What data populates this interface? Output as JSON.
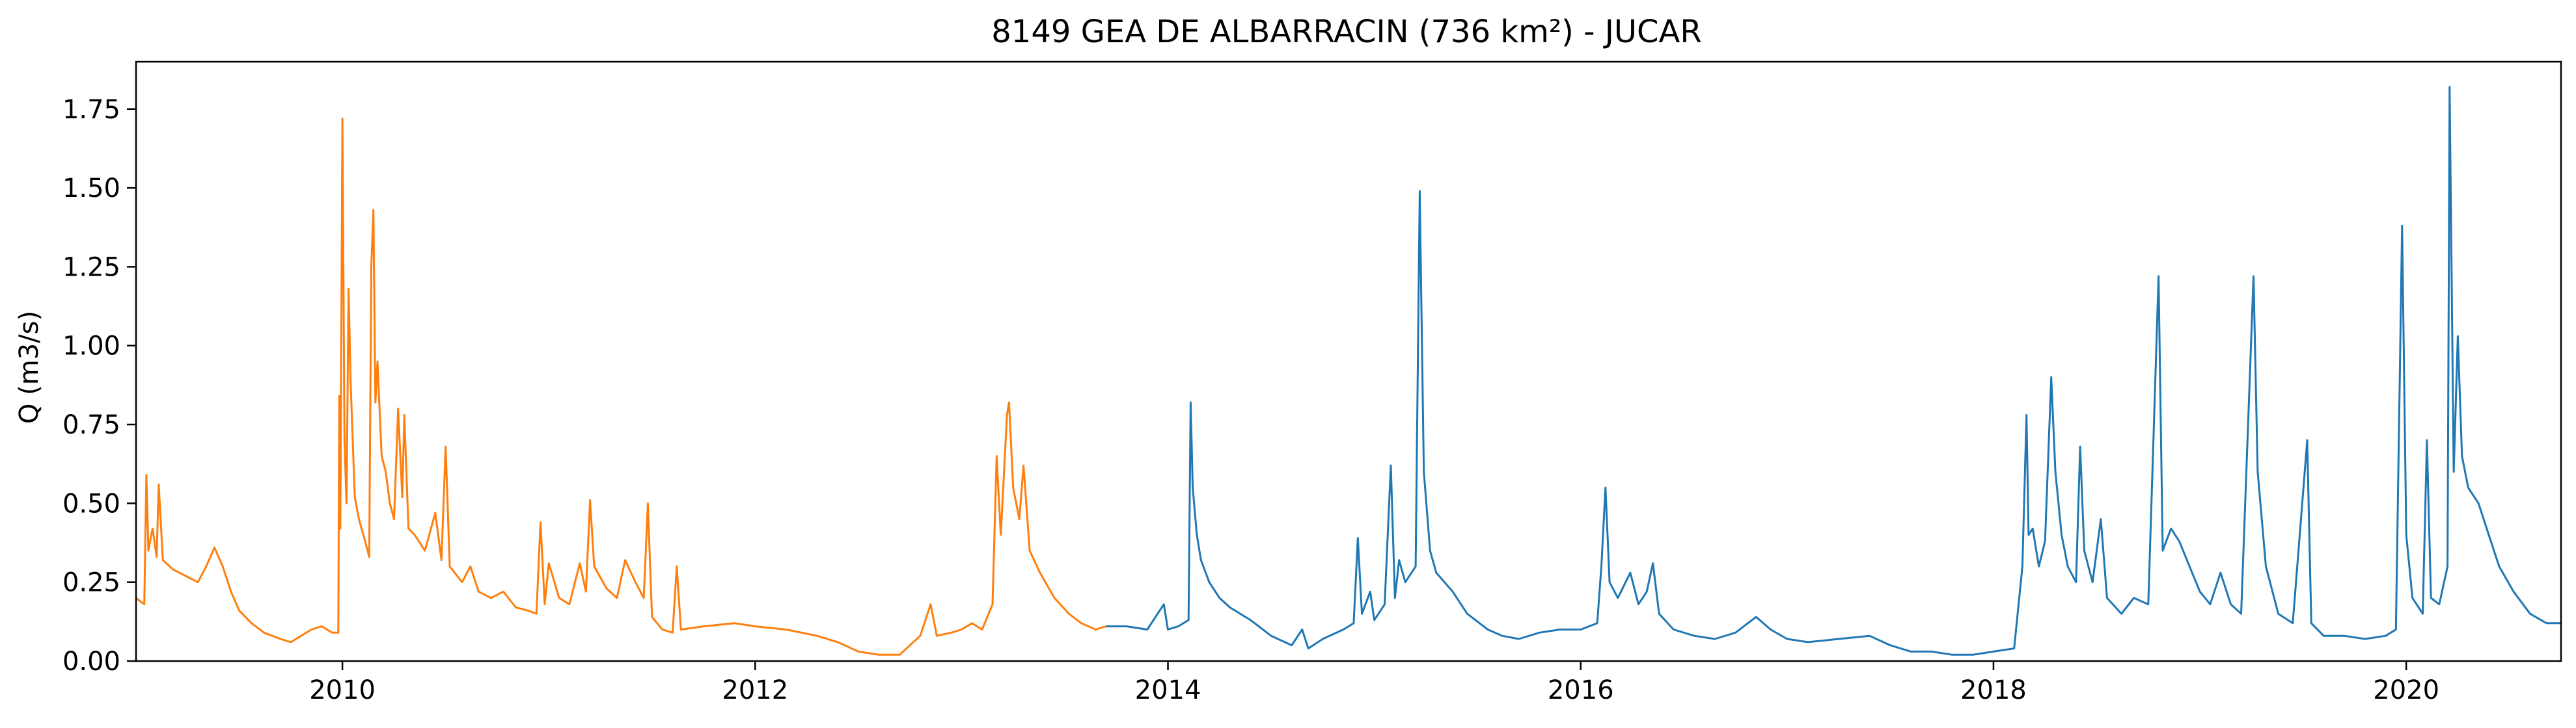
{
  "chart_data": {
    "type": "line",
    "title": "8149 GEA DE ALBARRACIN (736 km²) - JUCAR",
    "xlabel": "",
    "ylabel": "Q (m3/s)",
    "xlim": [
      2009.0,
      2020.75
    ],
    "ylim": [
      0.0,
      1.9
    ],
    "grid": false,
    "x_ticks": [
      2010,
      2012,
      2014,
      2016,
      2018,
      2020
    ],
    "x_tick_labels": [
      "2010",
      "2012",
      "2014",
      "2016",
      "2018",
      "2020"
    ],
    "y_ticks": [
      0.0,
      0.25,
      0.5,
      0.75,
      1.0,
      1.25,
      1.5,
      1.75
    ],
    "y_tick_labels": [
      "0.00",
      "0.25",
      "0.50",
      "0.75",
      "1.00",
      "1.25",
      "1.50",
      "1.75"
    ],
    "series": [
      {
        "color": "#ff7f0e",
        "points": [
          [
            2009.0,
            0.2
          ],
          [
            2009.04,
            0.18
          ],
          [
            2009.05,
            0.59
          ],
          [
            2009.06,
            0.35
          ],
          [
            2009.08,
            0.42
          ],
          [
            2009.1,
            0.33
          ],
          [
            2009.11,
            0.56
          ],
          [
            2009.13,
            0.32
          ],
          [
            2009.18,
            0.29
          ],
          [
            2009.24,
            0.27
          ],
          [
            2009.3,
            0.25
          ],
          [
            2009.34,
            0.3
          ],
          [
            2009.38,
            0.36
          ],
          [
            2009.42,
            0.3
          ],
          [
            2009.46,
            0.22
          ],
          [
            2009.5,
            0.16
          ],
          [
            2009.56,
            0.12
          ],
          [
            2009.62,
            0.09
          ],
          [
            2009.7,
            0.07
          ],
          [
            2009.75,
            0.06
          ],
          [
            2009.8,
            0.08
          ],
          [
            2009.85,
            0.1
          ],
          [
            2009.9,
            0.11
          ],
          [
            2009.95,
            0.09
          ],
          [
            2009.98,
            0.09
          ],
          [
            2009.985,
            0.84
          ],
          [
            2009.99,
            0.42
          ],
          [
            2010.0,
            1.72
          ],
          [
            2010.01,
            0.7
          ],
          [
            2010.02,
            0.5
          ],
          [
            2010.03,
            1.18
          ],
          [
            2010.04,
            0.88
          ],
          [
            2010.06,
            0.52
          ],
          [
            2010.08,
            0.45
          ],
          [
            2010.11,
            0.38
          ],
          [
            2010.13,
            0.33
          ],
          [
            2010.14,
            1.25
          ],
          [
            2010.15,
            1.43
          ],
          [
            2010.16,
            0.82
          ],
          [
            2010.17,
            0.95
          ],
          [
            2010.19,
            0.65
          ],
          [
            2010.21,
            0.6
          ],
          [
            2010.23,
            0.5
          ],
          [
            2010.25,
            0.45
          ],
          [
            2010.27,
            0.8
          ],
          [
            2010.29,
            0.52
          ],
          [
            2010.3,
            0.78
          ],
          [
            2010.32,
            0.42
          ],
          [
            2010.35,
            0.4
          ],
          [
            2010.4,
            0.35
          ],
          [
            2010.45,
            0.47
          ],
          [
            2010.48,
            0.32
          ],
          [
            2010.5,
            0.68
          ],
          [
            2010.52,
            0.3
          ],
          [
            2010.58,
            0.25
          ],
          [
            2010.62,
            0.3
          ],
          [
            2010.66,
            0.22
          ],
          [
            2010.72,
            0.2
          ],
          [
            2010.78,
            0.22
          ],
          [
            2010.84,
            0.17
          ],
          [
            2010.9,
            0.16
          ],
          [
            2010.94,
            0.15
          ],
          [
            2010.96,
            0.44
          ],
          [
            2010.98,
            0.18
          ],
          [
            2011.0,
            0.31
          ],
          [
            2011.05,
            0.2
          ],
          [
            2011.1,
            0.18
          ],
          [
            2011.15,
            0.31
          ],
          [
            2011.18,
            0.22
          ],
          [
            2011.2,
            0.51
          ],
          [
            2011.22,
            0.3
          ],
          [
            2011.28,
            0.23
          ],
          [
            2011.33,
            0.2
          ],
          [
            2011.37,
            0.32
          ],
          [
            2011.42,
            0.25
          ],
          [
            2011.46,
            0.2
          ],
          [
            2011.48,
            0.5
          ],
          [
            2011.5,
            0.14
          ],
          [
            2011.55,
            0.1
          ],
          [
            2011.6,
            0.09
          ],
          [
            2011.62,
            0.3
          ],
          [
            2011.64,
            0.1
          ],
          [
            2011.75,
            0.11
          ],
          [
            2011.9,
            0.12
          ],
          [
            2012.0,
            0.11
          ],
          [
            2012.15,
            0.1
          ],
          [
            2012.3,
            0.08
          ],
          [
            2012.4,
            0.06
          ],
          [
            2012.5,
            0.03
          ],
          [
            2012.6,
            0.02
          ],
          [
            2012.7,
            0.02
          ],
          [
            2012.75,
            0.05
          ],
          [
            2012.8,
            0.08
          ],
          [
            2012.85,
            0.18
          ],
          [
            2012.88,
            0.08
          ],
          [
            2012.95,
            0.09
          ],
          [
            2013.0,
            0.1
          ],
          [
            2013.05,
            0.12
          ],
          [
            2013.1,
            0.1
          ],
          [
            2013.15,
            0.18
          ],
          [
            2013.17,
            0.65
          ],
          [
            2013.19,
            0.4
          ],
          [
            2013.22,
            0.78
          ],
          [
            2013.23,
            0.82
          ],
          [
            2013.25,
            0.55
          ],
          [
            2013.28,
            0.45
          ],
          [
            2013.3,
            0.62
          ],
          [
            2013.33,
            0.35
          ],
          [
            2013.38,
            0.28
          ],
          [
            2013.45,
            0.2
          ],
          [
            2013.52,
            0.15
          ],
          [
            2013.58,
            0.12
          ],
          [
            2013.65,
            0.1
          ],
          [
            2013.7,
            0.11
          ]
        ]
      },
      {
        "color": "#1f77b4",
        "points": [
          [
            2013.7,
            0.11
          ],
          [
            2013.8,
            0.11
          ],
          [
            2013.9,
            0.1
          ],
          [
            2013.98,
            0.18
          ],
          [
            2014.0,
            0.1
          ],
          [
            2014.05,
            0.11
          ],
          [
            2014.1,
            0.13
          ],
          [
            2014.11,
            0.82
          ],
          [
            2014.12,
            0.55
          ],
          [
            2014.14,
            0.4
          ],
          [
            2014.16,
            0.32
          ],
          [
            2014.2,
            0.25
          ],
          [
            2014.25,
            0.2
          ],
          [
            2014.3,
            0.17
          ],
          [
            2014.4,
            0.13
          ],
          [
            2014.5,
            0.08
          ],
          [
            2014.6,
            0.05
          ],
          [
            2014.65,
            0.1
          ],
          [
            2014.68,
            0.04
          ],
          [
            2014.75,
            0.07
          ],
          [
            2014.85,
            0.1
          ],
          [
            2014.9,
            0.12
          ],
          [
            2014.92,
            0.39
          ],
          [
            2014.94,
            0.15
          ],
          [
            2014.98,
            0.22
          ],
          [
            2015.0,
            0.13
          ],
          [
            2015.05,
            0.18
          ],
          [
            2015.08,
            0.62
          ],
          [
            2015.1,
            0.2
          ],
          [
            2015.12,
            0.32
          ],
          [
            2015.15,
            0.25
          ],
          [
            2015.2,
            0.3
          ],
          [
            2015.22,
            1.49
          ],
          [
            2015.24,
            0.6
          ],
          [
            2015.27,
            0.35
          ],
          [
            2015.3,
            0.28
          ],
          [
            2015.38,
            0.22
          ],
          [
            2015.45,
            0.15
          ],
          [
            2015.55,
            0.1
          ],
          [
            2015.62,
            0.08
          ],
          [
            2015.7,
            0.07
          ],
          [
            2015.8,
            0.09
          ],
          [
            2015.9,
            0.1
          ],
          [
            2016.0,
            0.1
          ],
          [
            2016.08,
            0.12
          ],
          [
            2016.1,
            0.3
          ],
          [
            2016.12,
            0.55
          ],
          [
            2016.14,
            0.25
          ],
          [
            2016.18,
            0.2
          ],
          [
            2016.24,
            0.28
          ],
          [
            2016.28,
            0.18
          ],
          [
            2016.32,
            0.22
          ],
          [
            2016.35,
            0.31
          ],
          [
            2016.38,
            0.15
          ],
          [
            2016.45,
            0.1
          ],
          [
            2016.55,
            0.08
          ],
          [
            2016.65,
            0.07
          ],
          [
            2016.75,
            0.09
          ],
          [
            2016.85,
            0.14
          ],
          [
            2016.92,
            0.1
          ],
          [
            2017.0,
            0.07
          ],
          [
            2017.1,
            0.06
          ],
          [
            2017.25,
            0.07
          ],
          [
            2017.4,
            0.08
          ],
          [
            2017.5,
            0.05
          ],
          [
            2017.6,
            0.03
          ],
          [
            2017.7,
            0.03
          ],
          [
            2017.8,
            0.02
          ],
          [
            2017.9,
            0.02
          ],
          [
            2018.0,
            0.03
          ],
          [
            2018.1,
            0.04
          ],
          [
            2018.14,
            0.3
          ],
          [
            2018.16,
            0.78
          ],
          [
            2018.17,
            0.4
          ],
          [
            2018.19,
            0.42
          ],
          [
            2018.22,
            0.3
          ],
          [
            2018.25,
            0.38
          ],
          [
            2018.28,
            0.9
          ],
          [
            2018.3,
            0.6
          ],
          [
            2018.33,
            0.4
          ],
          [
            2018.36,
            0.3
          ],
          [
            2018.4,
            0.25
          ],
          [
            2018.42,
            0.68
          ],
          [
            2018.44,
            0.35
          ],
          [
            2018.48,
            0.25
          ],
          [
            2018.52,
            0.45
          ],
          [
            2018.55,
            0.2
          ],
          [
            2018.62,
            0.15
          ],
          [
            2018.68,
            0.2
          ],
          [
            2018.75,
            0.18
          ],
          [
            2018.8,
            1.22
          ],
          [
            2018.82,
            0.35
          ],
          [
            2018.86,
            0.42
          ],
          [
            2018.9,
            0.38
          ],
          [
            2018.95,
            0.3
          ],
          [
            2019.0,
            0.22
          ],
          [
            2019.05,
            0.18
          ],
          [
            2019.1,
            0.28
          ],
          [
            2019.15,
            0.18
          ],
          [
            2019.2,
            0.15
          ],
          [
            2019.26,
            1.22
          ],
          [
            2019.28,
            0.6
          ],
          [
            2019.32,
            0.3
          ],
          [
            2019.38,
            0.15
          ],
          [
            2019.45,
            0.12
          ],
          [
            2019.52,
            0.7
          ],
          [
            2019.54,
            0.12
          ],
          [
            2019.6,
            0.08
          ],
          [
            2019.7,
            0.08
          ],
          [
            2019.8,
            0.07
          ],
          [
            2019.9,
            0.08
          ],
          [
            2019.95,
            0.1
          ],
          [
            2019.98,
            1.38
          ],
          [
            2020.0,
            0.4
          ],
          [
            2020.03,
            0.2
          ],
          [
            2020.08,
            0.15
          ],
          [
            2020.1,
            0.7
          ],
          [
            2020.12,
            0.2
          ],
          [
            2020.16,
            0.18
          ],
          [
            2020.2,
            0.3
          ],
          [
            2020.21,
            1.82
          ],
          [
            2020.23,
            0.6
          ],
          [
            2020.25,
            1.03
          ],
          [
            2020.27,
            0.65
          ],
          [
            2020.3,
            0.55
          ],
          [
            2020.35,
            0.5
          ],
          [
            2020.4,
            0.4
          ],
          [
            2020.45,
            0.3
          ],
          [
            2020.52,
            0.22
          ],
          [
            2020.6,
            0.15
          ],
          [
            2020.68,
            0.12
          ],
          [
            2020.75,
            0.12
          ]
        ]
      }
    ]
  }
}
